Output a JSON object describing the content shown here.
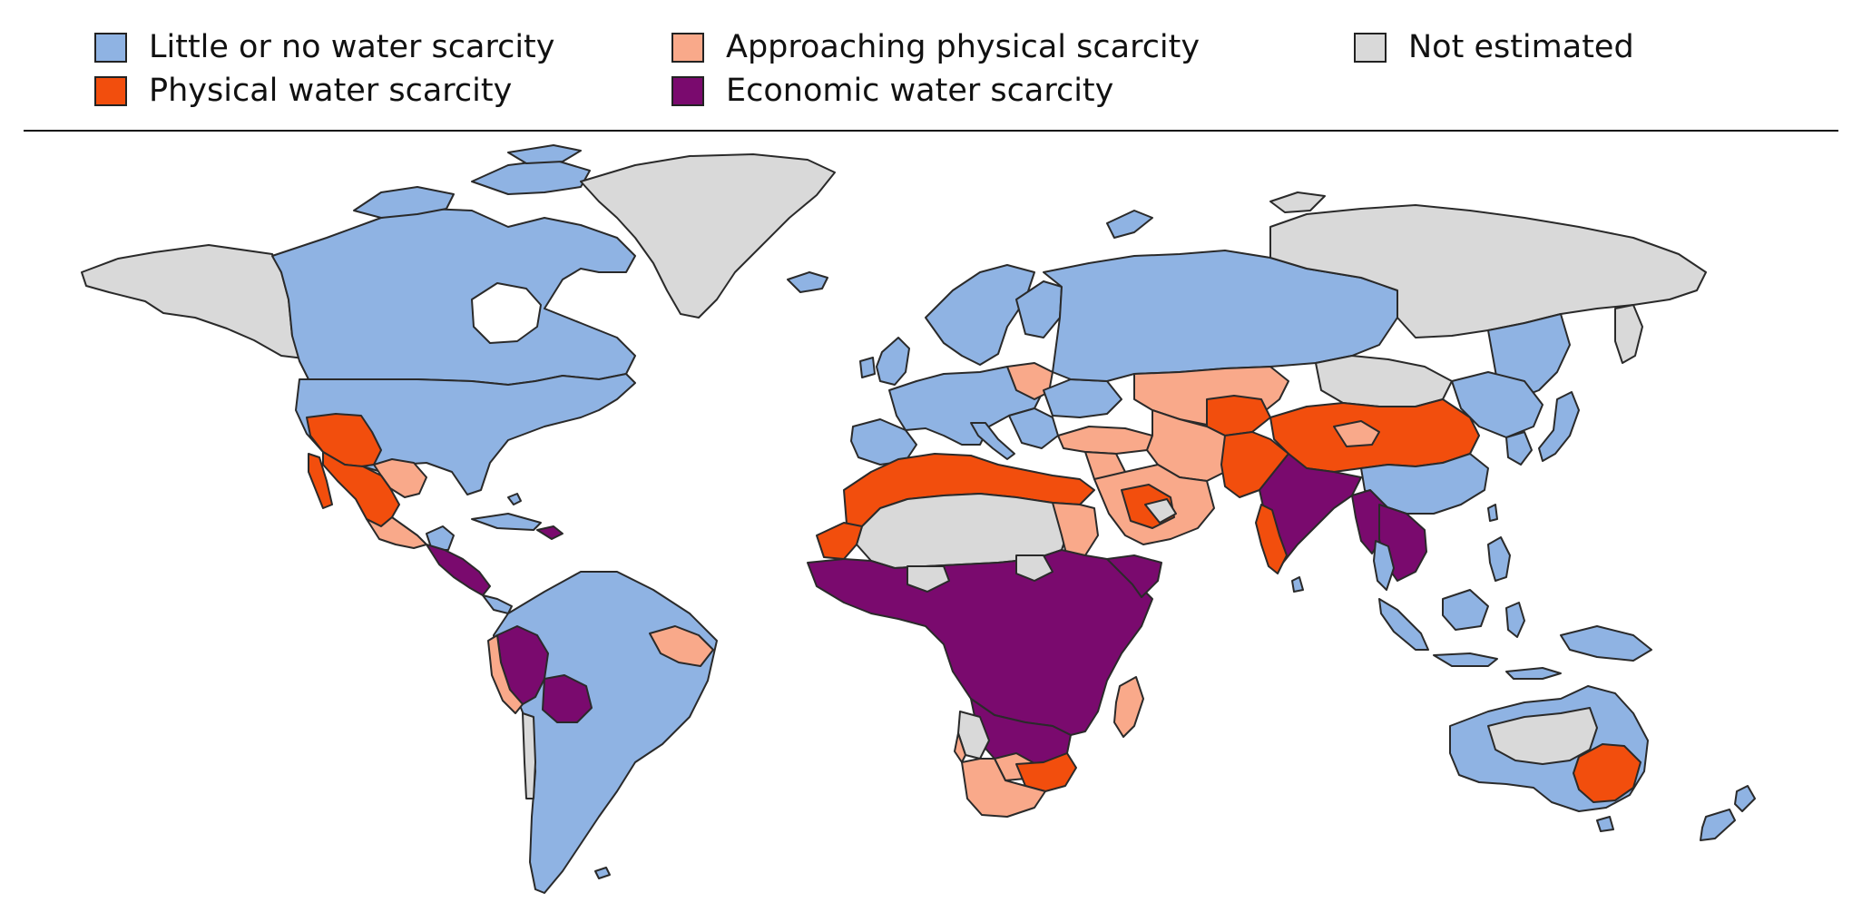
{
  "legend": {
    "items": [
      {
        "key": "little",
        "label": "Little or no water scarcity",
        "color": "#8fb3e3"
      },
      {
        "key": "physical",
        "label": "Physical water scarcity",
        "color": "#f24e0d"
      },
      {
        "key": "approaching",
        "label": "Approaching physical scarcity",
        "color": "#f9a98a"
      },
      {
        "key": "economic",
        "label": "Economic water scarcity",
        "color": "#7a0a6e"
      },
      {
        "key": "not_estimated",
        "label": "Not estimated",
        "color": "#d9d9d9"
      }
    ]
  },
  "colors": {
    "little": "#8fb3e3",
    "physical": "#f24e0d",
    "approaching": "#f9a98a",
    "economic": "#7a0a6e",
    "not_estimated": "#d9d9d9",
    "border": "#2a2a2a"
  }
}
